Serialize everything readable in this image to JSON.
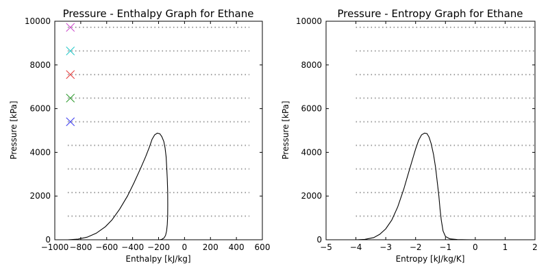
{
  "chart_data": [
    {
      "type": "line",
      "title": "Pressure - Enthalpy Graph for Ethane",
      "xlabel": "Enthalpy [kJ/kg]",
      "ylabel": "Pressure [kPa]",
      "xlim": [
        -1000,
        600
      ],
      "ylim": [
        0,
        10000
      ],
      "xticks": [
        -1000,
        -800,
        -600,
        -400,
        -200,
        0,
        200,
        400,
        600
      ],
      "xtick_labels": [
        "−1000",
        "−800",
        "−600",
        "−400",
        "−200",
        "0",
        "200",
        "400",
        "600"
      ],
      "yticks": [
        0,
        2000,
        4000,
        6000,
        8000,
        10000
      ],
      "ytick_labels": [
        "0",
        "2000",
        "4000",
        "6000",
        "8000",
        "10000"
      ],
      "grid": false,
      "dome": {
        "x": [
          -900,
          -820,
          -750,
          -680,
          -610,
          -560,
          -500,
          -440,
          -390,
          -340,
          -300,
          -270,
          -250,
          -230,
          -210,
          -190,
          -175,
          -160,
          -150,
          -142,
          -137,
          -133,
          -130,
          -129,
          -130,
          -133,
          -138,
          -146,
          -158,
          -175,
          -192
        ],
        "y": [
          0,
          30,
          120,
          300,
          600,
          900,
          1400,
          2000,
          2600,
          3250,
          3800,
          4250,
          4600,
          4800,
          4880,
          4850,
          4720,
          4500,
          4200,
          3800,
          3300,
          2800,
          2200,
          1600,
          1100,
          700,
          400,
          200,
          80,
          20,
          0
        ]
      },
      "isobars": {
        "x_range": [
          -900,
          500
        ],
        "pressures": [
          1080,
          2160,
          3240,
          4320,
          5400,
          6480,
          7560,
          8640,
          9720
        ]
      },
      "markers": [
        {
          "x": -880,
          "y": 5400,
          "color": "#3a3af0"
        },
        {
          "x": -880,
          "y": 6480,
          "color": "#2a9a2a"
        },
        {
          "x": -880,
          "y": 7560,
          "color": "#e83a3a"
        },
        {
          "x": -880,
          "y": 8640,
          "color": "#20c8c8"
        },
        {
          "x": -880,
          "y": 9720,
          "color": "#c83ac8"
        }
      ]
    },
    {
      "type": "line",
      "title": "Pressure - Entropy Graph for Ethane",
      "xlabel": "Entropy [kJ/kg/K]",
      "ylabel": "Pressure [kPa]",
      "xlim": [
        -5,
        2
      ],
      "ylim": [
        0,
        10000
      ],
      "xticks": [
        -5,
        -4,
        -3,
        -2,
        -1,
        0,
        1,
        2
      ],
      "xtick_labels": [
        "−5",
        "−4",
        "−3",
        "−2",
        "−1",
        "0",
        "1",
        "2"
      ],
      "yticks": [
        0,
        2000,
        4000,
        6000,
        8000,
        10000
      ],
      "ytick_labels": [
        "0",
        "2000",
        "4000",
        "6000",
        "8000",
        "10000"
      ],
      "grid": false,
      "dome": {
        "x": [
          -4.0,
          -3.7,
          -3.4,
          -3.2,
          -3.0,
          -2.8,
          -2.6,
          -2.4,
          -2.25,
          -2.1,
          -2.0,
          -1.9,
          -1.8,
          -1.7,
          -1.62,
          -1.55,
          -1.48,
          -1.4,
          -1.33,
          -1.27,
          -1.22,
          -1.18,
          -1.14,
          -1.08,
          -1.0,
          -0.85,
          -0.6,
          -0.3,
          0.0,
          0.3
        ],
        "y": [
          0,
          20,
          100,
          250,
          500,
          900,
          1500,
          2300,
          3000,
          3700,
          4150,
          4550,
          4800,
          4880,
          4860,
          4700,
          4400,
          3900,
          3300,
          2600,
          2000,
          1400,
          900,
          400,
          150,
          40,
          10,
          3,
          0,
          0
        ]
      },
      "isobars": {
        "x_range": [
          -4.0,
          2.0
        ],
        "pressures": [
          1080,
          2160,
          3240,
          4320,
          5400,
          6480,
          7560,
          8640,
          9720
        ]
      },
      "markers": []
    }
  ]
}
